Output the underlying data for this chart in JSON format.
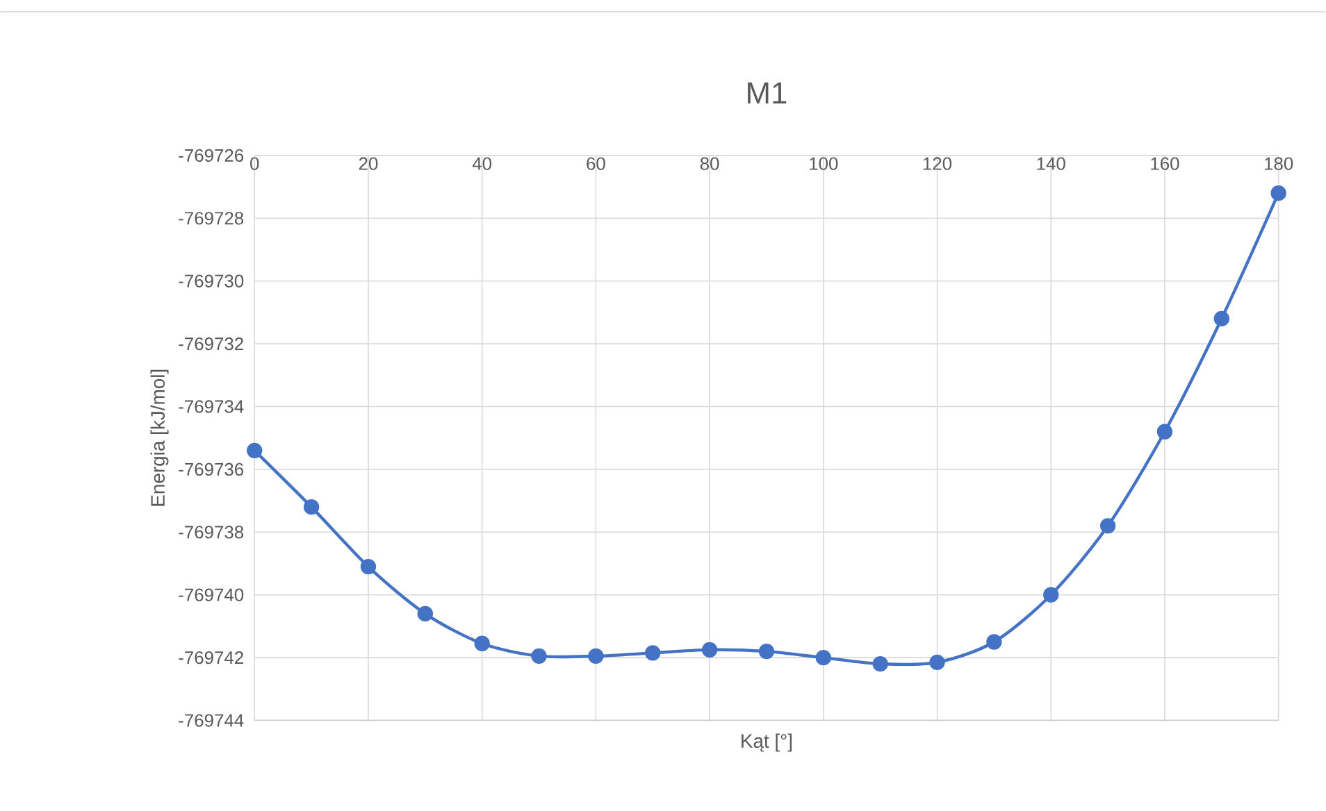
{
  "chart_data": {
    "type": "line",
    "title": "M1",
    "xlabel": "Kąt [°]",
    "ylabel": "Energia [kJ/mol]",
    "x": [
      0,
      10,
      20,
      30,
      40,
      50,
      60,
      70,
      80,
      90,
      100,
      110,
      120,
      130,
      140,
      150,
      160,
      170,
      180
    ],
    "series": [
      {
        "color": "#4472c4",
        "values": [
          -769735.4,
          -769737.2,
          -769739.1,
          -769740.6,
          -769741.55,
          -769741.95,
          -769741.95,
          -769741.85,
          -769741.75,
          -769741.8,
          -769742.0,
          -769742.2,
          -769742.15,
          -769741.5,
          -769740.0,
          -769737.8,
          -769734.8,
          -769731.2,
          -769727.2
        ]
      }
    ],
    "xlim": [
      0,
      180
    ],
    "ylim": [
      -769744,
      -769726
    ],
    "xticks": [
      0,
      20,
      40,
      60,
      80,
      100,
      120,
      140,
      160,
      180
    ],
    "yticks": [
      -769744,
      -769742,
      -769740,
      -769738,
      -769736,
      -769734,
      -769732,
      -769730,
      -769728,
      -769726
    ],
    "grid": true,
    "marker": "circle",
    "line_style": "solid"
  }
}
